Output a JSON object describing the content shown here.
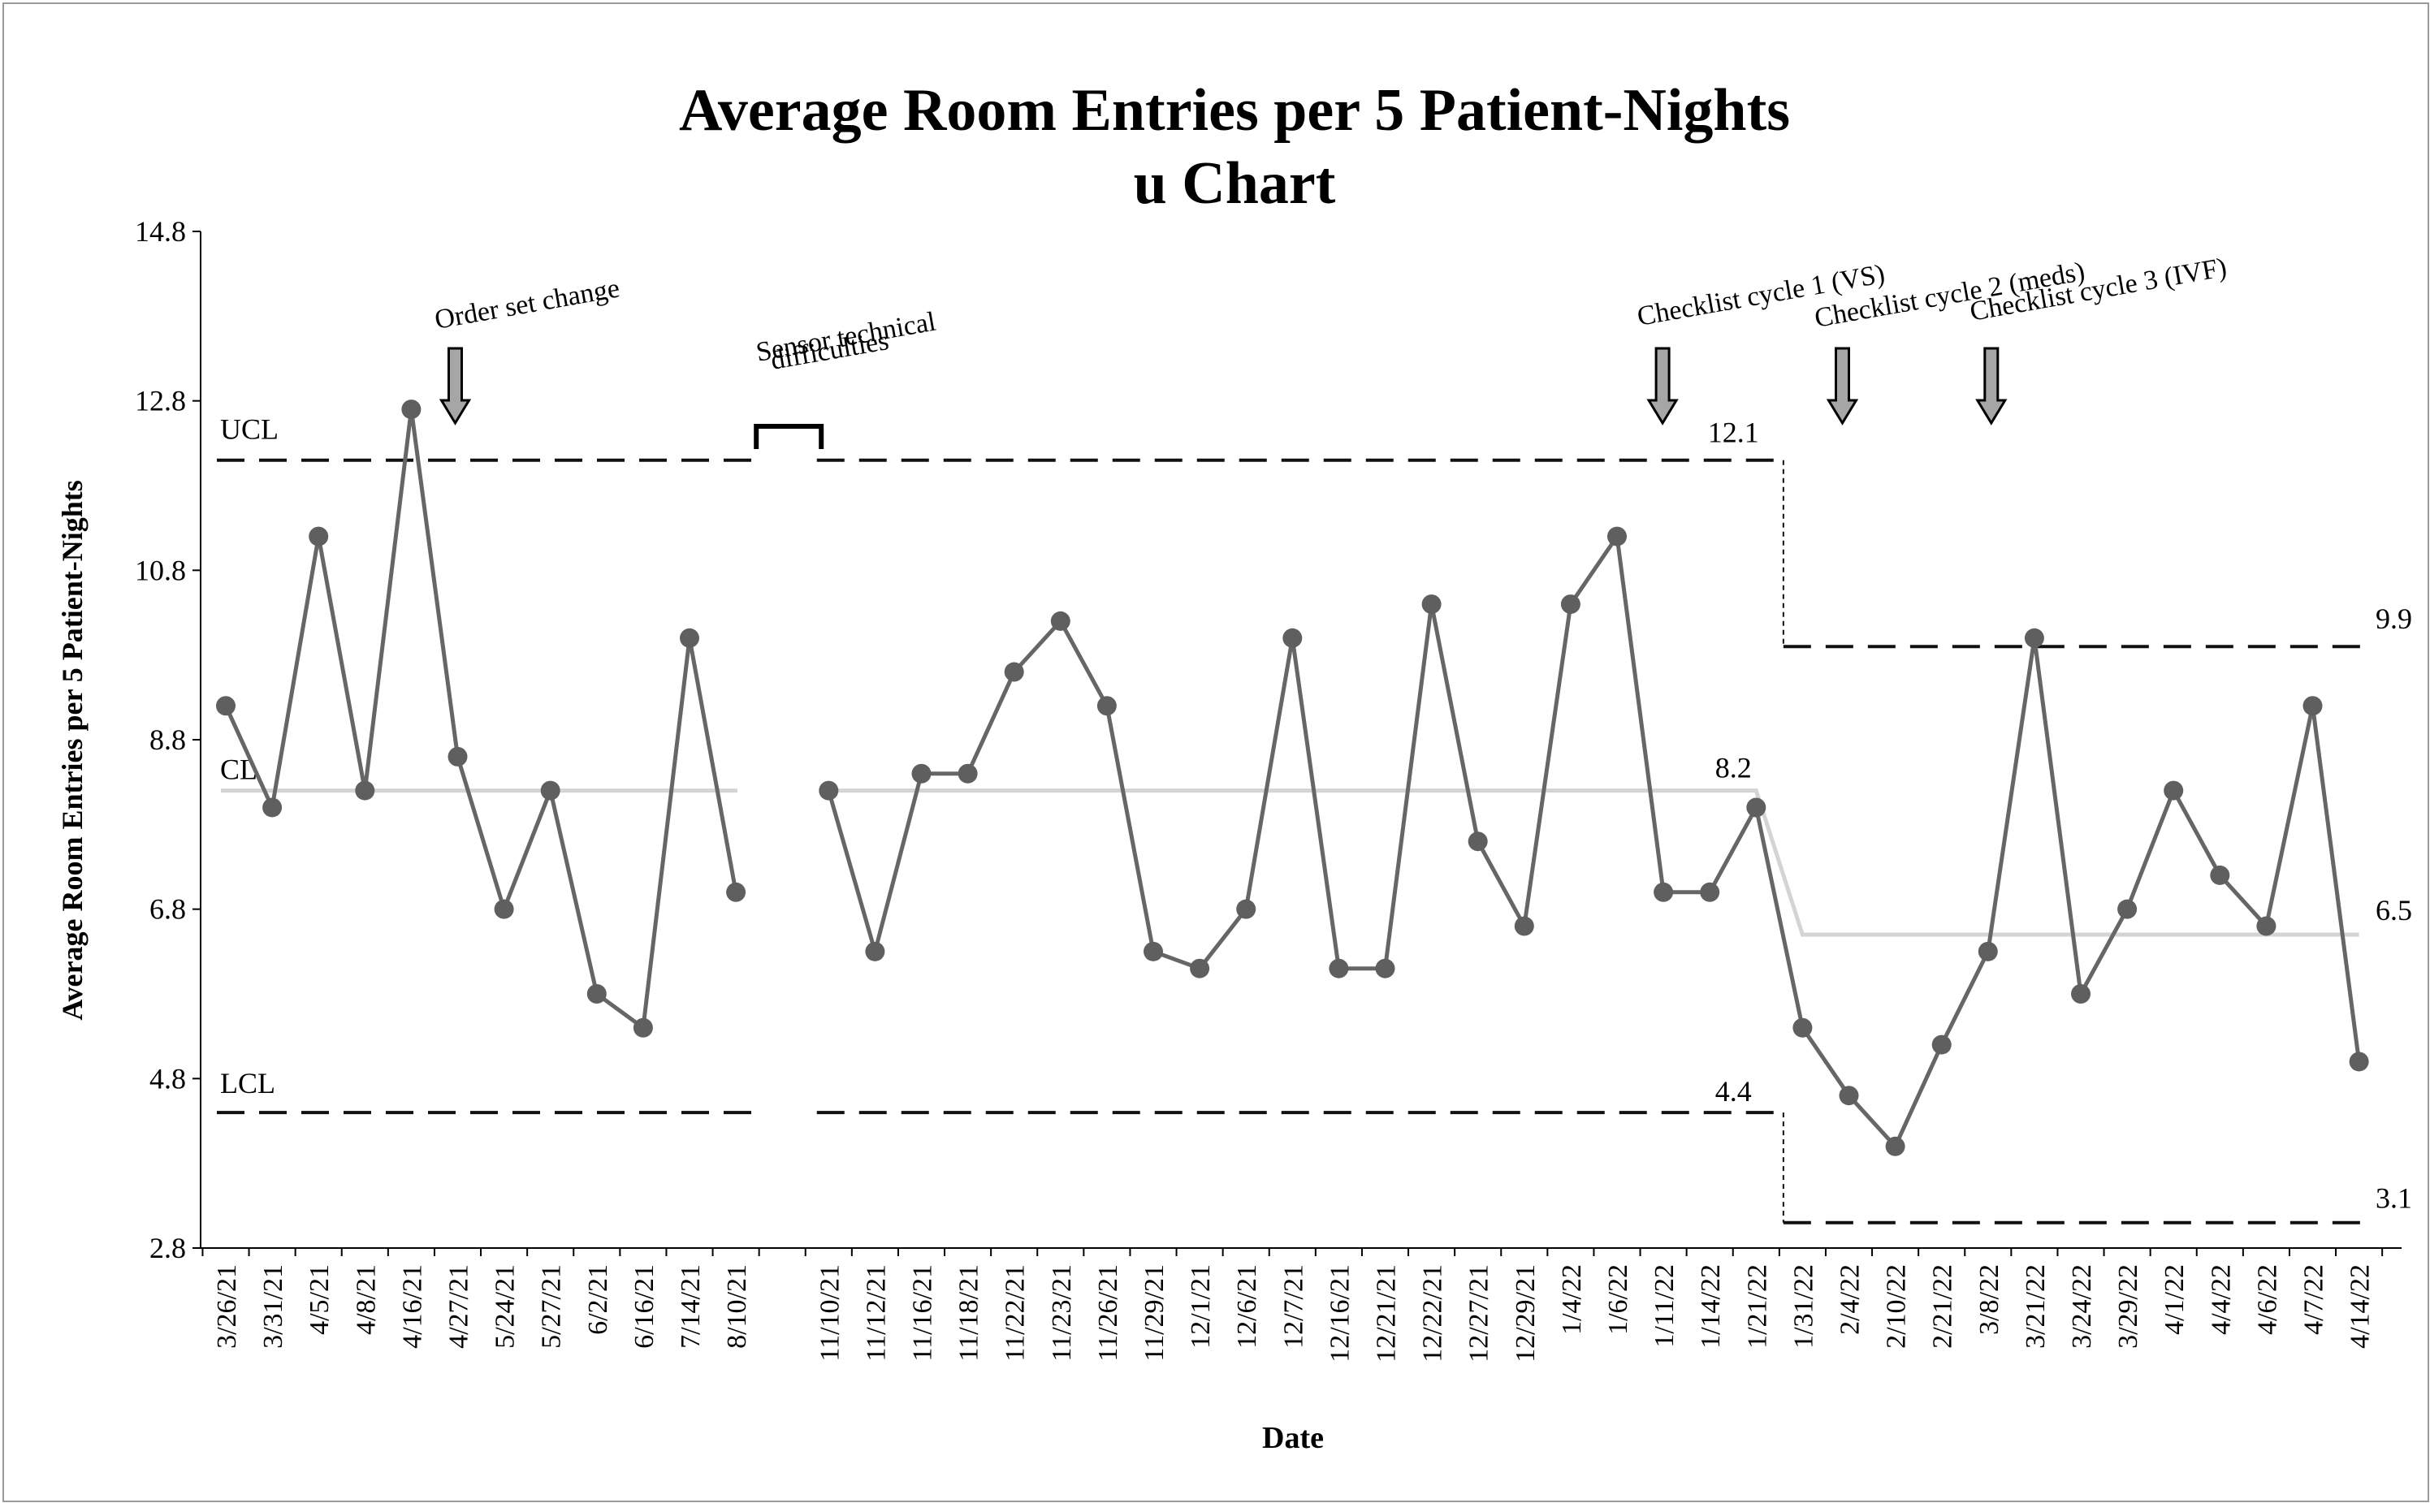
{
  "chart_data": {
    "type": "line",
    "title": "Average Room Entries per 5 Patient-Nights",
    "subtitle": "u Chart",
    "xlabel": "Date",
    "ylabel": "Average Room Entries per 5 Patient-Nights",
    "ylim": [
      2.8,
      14.8
    ],
    "yticks": [
      "2.8",
      "4.8",
      "6.8",
      "8.8",
      "10.8",
      "12.8",
      "14.8"
    ],
    "grid": false,
    "categories": [
      "3/26/21",
      "3/31/21",
      "4/5/21",
      "4/8/21",
      "4/16/21",
      "4/27/21",
      "5/24/21",
      "5/27/21",
      "6/2/21",
      "6/16/21",
      "7/14/21",
      "8/10/21",
      "",
      "11/10/21",
      "11/12/21",
      "11/16/21",
      "11/18/21",
      "11/22/21",
      "11/23/21",
      "11/26/21",
      "11/29/21",
      "12/1/21",
      "12/6/21",
      "12/7/21",
      "12/16/21",
      "12/21/21",
      "12/22/21",
      "12/27/21",
      "12/29/21",
      "1/4/22",
      "1/6/22",
      "1/11/22",
      "1/14/22",
      "1/21/22",
      "1/31/22",
      "2/4/22",
      "2/10/22",
      "2/21/22",
      "3/8/22",
      "3/21/22",
      "3/24/22",
      "3/29/22",
      "4/1/22",
      "4/4/22",
      "4/6/22",
      "4/7/22",
      "4/14/22"
    ],
    "series": [
      {
        "values": [
          9.2,
          8.0,
          11.2,
          8.2,
          12.7,
          8.6,
          6.8,
          8.2,
          5.8,
          5.4,
          10.0,
          7.0,
          null,
          8.2,
          6.3,
          8.4,
          8.4,
          9.6,
          10.2,
          9.2,
          6.3,
          6.1,
          6.8,
          10.0,
          6.1,
          6.1,
          10.4,
          7.6,
          6.6,
          10.4,
          11.2,
          7.0,
          7.0,
          8.0,
          5.4,
          4.6,
          4.0,
          5.2,
          6.3,
          10.0,
          5.8,
          6.8,
          8.2,
          7.2,
          6.6,
          9.2,
          5.0
        ]
      }
    ],
    "control_limits": {
      "labels": {
        "ucl": "UCL",
        "cl": "CL",
        "lcl": "LCL"
      },
      "phase1": {
        "ucl": 12.1,
        "cl": 8.2,
        "lcl": 4.4,
        "ucl_label": "12.1",
        "cl_label": "8.2",
        "lcl_label": "4.4"
      },
      "phase2": {
        "ucl": 9.9,
        "cl": 6.5,
        "lcl": 3.1,
        "ucl_label": "9.9",
        "cl_label": "6.5",
        "lcl_label": "3.1"
      }
    },
    "annotations": [
      {
        "text": "Order set change",
        "at": "4/27/21"
      },
      {
        "lines": [
          "Sensor technical",
          "difficulties"
        ],
        "at": ""
      },
      {
        "text": "Checklist cycle 1 (VS)",
        "at": "1/11/22"
      },
      {
        "text": "Checklist cycle 2 (meds)",
        "at": "2/4/22"
      },
      {
        "text": "Checklist cycle 3 (IVF)",
        "at": "3/8/22"
      }
    ],
    "colors": {
      "data_line": "#666666",
      "data_marker": "#5f5f5f",
      "center_line": "#d4d4d4",
      "limit_line": "#111111",
      "arrow_fill": "#a6a6a6"
    }
  }
}
